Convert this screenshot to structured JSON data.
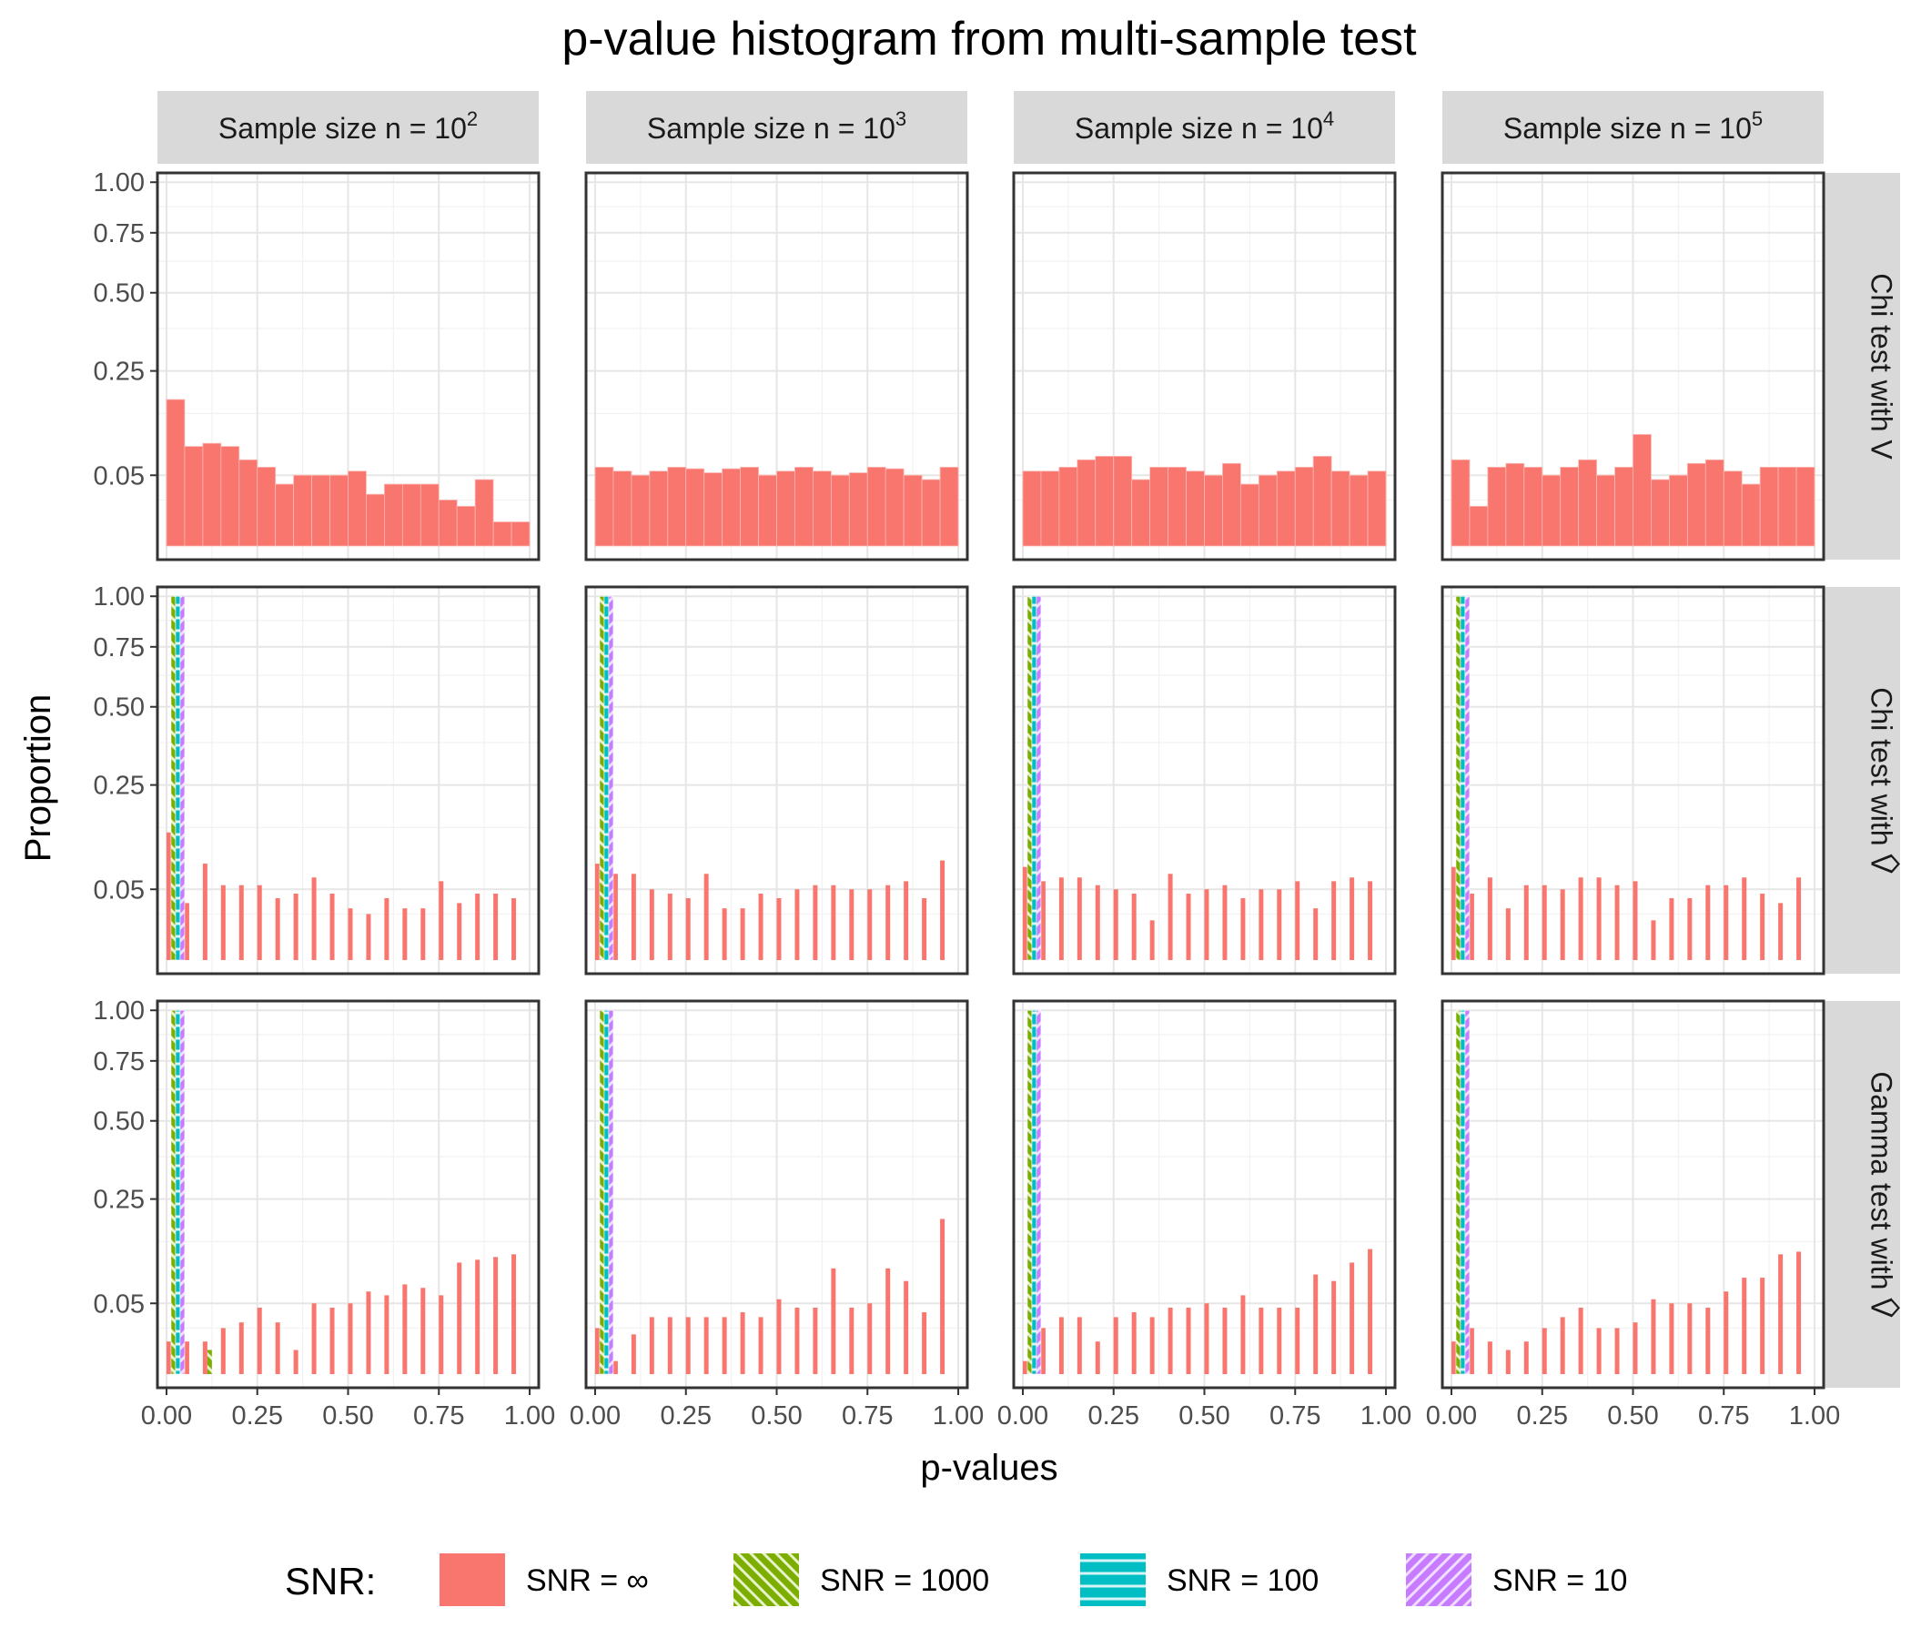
{
  "title": "p-value histogram from multi-sample test",
  "xlabel": "p-values",
  "ylabel": "Proportion",
  "legend": {
    "title": "SNR:",
    "position": "bottom",
    "items": [
      {
        "label": "SNR = ∞",
        "color": "#F8766D",
        "pattern": "solid"
      },
      {
        "label": "SNR = 1000",
        "color": "#7CAE00",
        "pattern": "diagonal-back"
      },
      {
        "label": "SNR = 100",
        "color": "#00BFC4",
        "pattern": "horizontal"
      },
      {
        "label": "SNR = 10",
        "color": "#C77CFF",
        "pattern": "diagonal"
      }
    ]
  },
  "columns": [
    {
      "label": "Sample size n = 10",
      "exponent": "2"
    },
    {
      "label": "Sample size n = 10",
      "exponent": "3"
    },
    {
      "label": "Sample size n = 10",
      "exponent": "4"
    },
    {
      "label": "Sample size n = 10",
      "exponent": "5"
    }
  ],
  "rows": [
    {
      "label": "Chi test with V",
      "hat": false
    },
    {
      "label": "Chi test with V",
      "hat": true
    },
    {
      "label": "Gamma test with V",
      "hat": true
    }
  ],
  "y_ticks": [
    "1.00",
    "0.75",
    "0.50",
    "0.25",
    "0.05"
  ],
  "x_ticks": [
    "0.00",
    "0.25",
    "0.50",
    "0.75",
    "1.00"
  ],
  "chart_data": {
    "type": "bar",
    "y_scale": "sqrt",
    "ylim": [
      0,
      1.05
    ],
    "xlim": [
      -0.025,
      1.025
    ],
    "grid": true,
    "legend_position": "bottom",
    "bin_width": 0.05,
    "bin_starts": [
      0,
      0.05,
      0.1,
      0.15,
      0.2,
      0.25,
      0.3,
      0.35,
      0.4,
      0.45,
      0.5,
      0.55,
      0.6,
      0.65,
      0.7,
      0.75,
      0.8,
      0.85,
      0.9,
      0.95
    ],
    "panels": [
      {
        "row": 0,
        "col": 0,
        "layout": "single",
        "infinity": [
          0.18,
          0.09,
          0.095,
          0.09,
          0.07,
          0.06,
          0.04,
          0.05,
          0.05,
          0.05,
          0.055,
          0.03,
          0.04,
          0.04,
          0.04,
          0.025,
          0.02,
          0.045,
          0.01,
          0.01
        ]
      },
      {
        "row": 0,
        "col": 1,
        "layout": "single",
        "infinity": [
          0.06,
          0.055,
          0.05,
          0.055,
          0.06,
          0.058,
          0.053,
          0.058,
          0.06,
          0.05,
          0.055,
          0.06,
          0.055,
          0.05,
          0.053,
          0.06,
          0.058,
          0.05,
          0.045,
          0.06
        ]
      },
      {
        "row": 0,
        "col": 2,
        "layout": "single",
        "infinity": [
          0.055,
          0.055,
          0.06,
          0.07,
          0.075,
          0.075,
          0.045,
          0.06,
          0.06,
          0.055,
          0.05,
          0.065,
          0.04,
          0.05,
          0.055,
          0.06,
          0.075,
          0.055,
          0.05,
          0.055
        ]
      },
      {
        "row": 0,
        "col": 3,
        "layout": "single",
        "infinity": [
          0.07,
          0.02,
          0.06,
          0.065,
          0.06,
          0.05,
          0.06,
          0.07,
          0.05,
          0.06,
          0.11,
          0.045,
          0.05,
          0.065,
          0.07,
          0.055,
          0.04,
          0.06,
          0.06,
          0.06
        ]
      },
      {
        "row": 1,
        "col": 0,
        "layout": "dodge",
        "snr1000": 1.0,
        "snr100": 1.0,
        "snr10": 1.0,
        "infinity": [
          0.14,
          0.035,
          0.085,
          0.055,
          0.055,
          0.055,
          0.04,
          0.045,
          0.065,
          0.045,
          0.03,
          0.025,
          0.04,
          0.03,
          0.03,
          0.06,
          0.035,
          0.045,
          0.045,
          0.04
        ]
      },
      {
        "row": 1,
        "col": 1,
        "layout": "dodge",
        "snr1000": 1.0,
        "snr100": 1.0,
        "snr10": 1.0,
        "infinity": [
          0.085,
          0.07,
          0.07,
          0.05,
          0.045,
          0.04,
          0.07,
          0.03,
          0.03,
          0.045,
          0.04,
          0.05,
          0.055,
          0.055,
          0.05,
          0.05,
          0.055,
          0.06,
          0.04,
          0.09
        ]
      },
      {
        "row": 1,
        "col": 2,
        "layout": "dodge",
        "snr1000": 1.0,
        "snr100": 1.0,
        "snr10": 1.0,
        "infinity": [
          0.08,
          0.06,
          0.065,
          0.065,
          0.055,
          0.05,
          0.045,
          0.02,
          0.07,
          0.045,
          0.05,
          0.055,
          0.04,
          0.05,
          0.05,
          0.06,
          0.03,
          0.06,
          0.065,
          0.06
        ]
      },
      {
        "row": 1,
        "col": 3,
        "layout": "dodge",
        "snr1000": 1.0,
        "snr100": 1.0,
        "snr10": 1.0,
        "infinity": [
          0.08,
          0.045,
          0.065,
          0.03,
          0.055,
          0.055,
          0.05,
          0.065,
          0.065,
          0.055,
          0.06,
          0.02,
          0.04,
          0.04,
          0.055,
          0.055,
          0.065,
          0.045,
          0.035,
          0.065
        ]
      },
      {
        "row": 2,
        "col": 0,
        "layout": "dodge",
        "snr1000": 1.0,
        "snr100": 1.0,
        "snr10": 1.0,
        "snr1000_extra": {
          "bin": 0.1,
          "value": 0.01
        },
        "infinity": [
          0.015,
          0.015,
          0.015,
          0.025,
          0.03,
          0.045,
          0.03,
          0.01,
          0.05,
          0.045,
          0.05,
          0.065,
          0.06,
          0.075,
          0.07,
          0.06,
          0.11,
          0.115,
          0.12,
          0.125
        ]
      },
      {
        "row": 2,
        "col": 1,
        "layout": "dodge",
        "snr1000": 1.0,
        "snr100": 1.0,
        "snr10": 1.0,
        "infinity": [
          0.025,
          0.005,
          0.02,
          0.035,
          0.035,
          0.035,
          0.035,
          0.035,
          0.04,
          0.035,
          0.055,
          0.045,
          0.045,
          0.1,
          0.045,
          0.05,
          0.1,
          0.08,
          0.04,
          0.2
        ]
      },
      {
        "row": 2,
        "col": 2,
        "layout": "dodge",
        "snr1000": 1.0,
        "snr100": 1.0,
        "snr10": 1.0,
        "infinity": [
          0.005,
          0.025,
          0.035,
          0.035,
          0.015,
          0.035,
          0.04,
          0.035,
          0.045,
          0.045,
          0.05,
          0.045,
          0.06,
          0.045,
          0.045,
          0.045,
          0.09,
          0.08,
          0.11,
          0.135
        ]
      },
      {
        "row": 2,
        "col": 3,
        "layout": "dodge",
        "snr1000": 1.0,
        "snr100": 1.0,
        "snr10": 1.0,
        "infinity": [
          0.015,
          0.025,
          0.015,
          0.01,
          0.015,
          0.025,
          0.035,
          0.045,
          0.025,
          0.025,
          0.03,
          0.055,
          0.05,
          0.05,
          0.045,
          0.065,
          0.085,
          0.085,
          0.125,
          0.13
        ]
      }
    ]
  }
}
